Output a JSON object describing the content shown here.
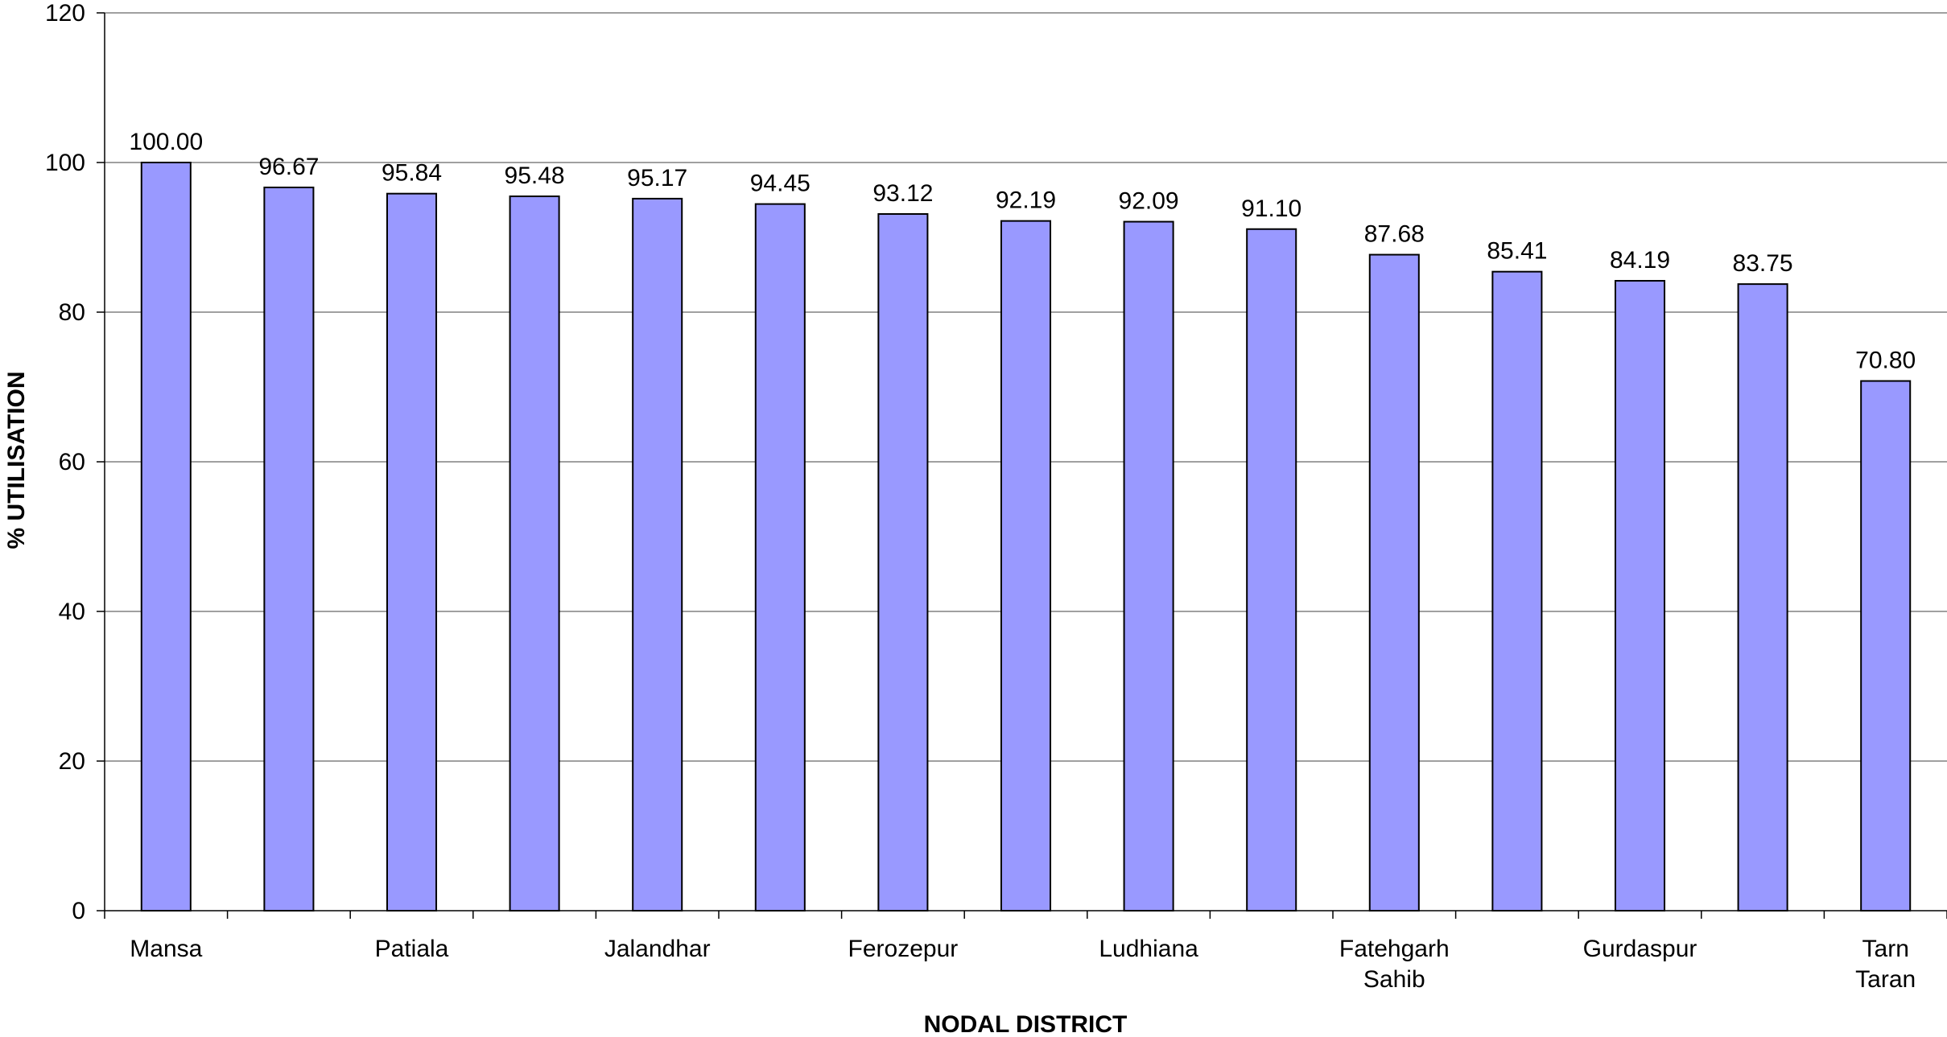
{
  "chart_data": {
    "type": "bar",
    "title": "",
    "xlabel": "NODAL DISTRICT",
    "ylabel": "% UTILISATION",
    "ylim": [
      0,
      120
    ],
    "yticks": [
      0,
      20,
      40,
      60,
      80,
      100,
      120
    ],
    "grid": true,
    "legend": "none",
    "bar_color": "#9999ff",
    "categories": [
      "Mansa",
      "",
      "Patiala",
      "",
      "Jalandhar",
      "",
      "Ferozepur",
      "",
      "Ludhiana",
      "",
      "Fatehgarh Sahib",
      "",
      "Gurdaspur",
      "",
      "Tarn Taran"
    ],
    "category_lines": [
      [
        "Mansa"
      ],
      [],
      [
        "Patiala"
      ],
      [],
      [
        "Jalandhar"
      ],
      [],
      [
        "Ferozepur"
      ],
      [],
      [
        "Ludhiana"
      ],
      [],
      [
        "Fatehgarh",
        "Sahib"
      ],
      [],
      [
        "Gurdaspur"
      ],
      [],
      [
        "Tarn",
        "Taran"
      ]
    ],
    "values": [
      100.0,
      96.67,
      95.84,
      95.48,
      95.17,
      94.45,
      93.12,
      92.19,
      92.09,
      91.1,
      87.68,
      85.41,
      84.19,
      83.75,
      70.8
    ],
    "value_labels": [
      "100.00",
      "96.67",
      "95.84",
      "95.48",
      "95.17",
      "94.45",
      "93.12",
      "92.19",
      "92.09",
      "91.10",
      "87.68",
      "85.41",
      "84.19",
      "83.75",
      "70.80"
    ]
  }
}
